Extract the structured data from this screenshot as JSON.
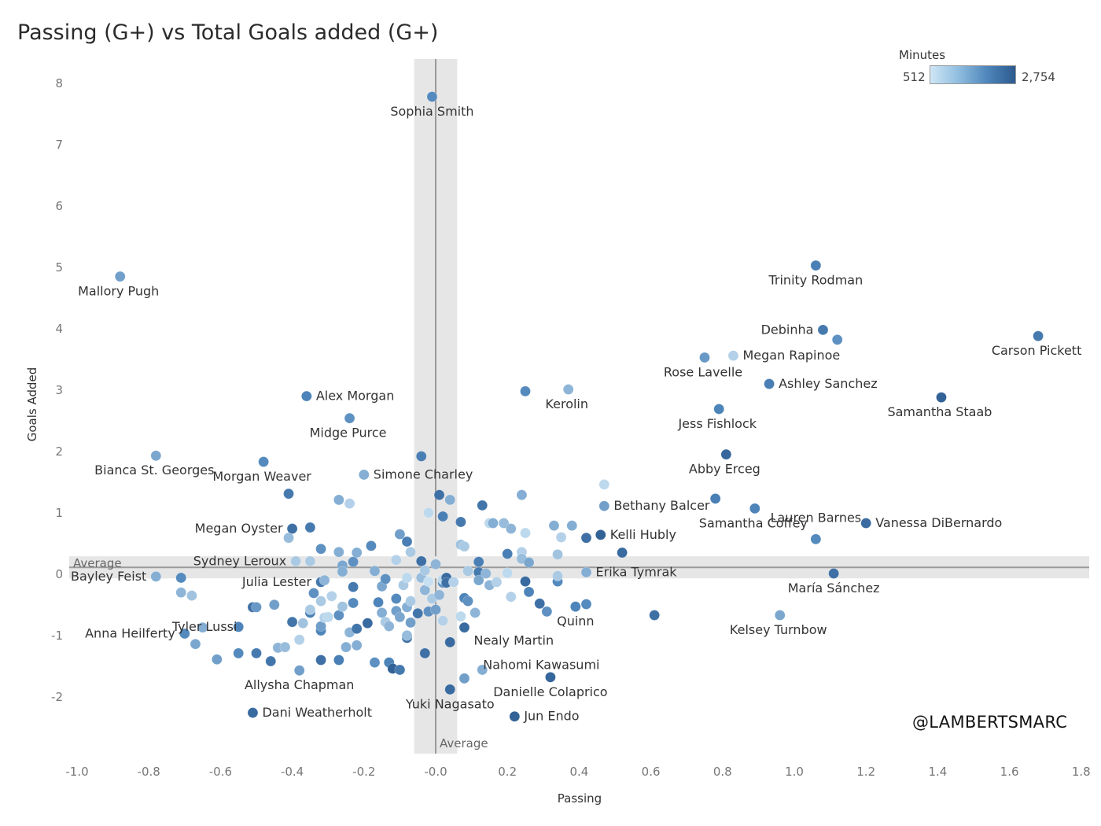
{
  "title": "Passing (G+) vs Total Goals added (G+)",
  "credit": "@LAMBERTSMARC",
  "legend": {
    "title": "Minutes",
    "min_label": "512",
    "max_label": "2,754",
    "min": 512,
    "max": 2754,
    "color_low": "#cfe6f5",
    "color_high": "#2c5a8e"
  },
  "chart_data": {
    "type": "scatter",
    "title": "Passing (G+) vs Total Goals added (G+)",
    "xlabel": "Passing",
    "ylabel": "Goals Added",
    "xlim": [
      -1.0,
      1.8
    ],
    "ylim": [
      -2.5,
      8.3
    ],
    "x_ticks": [
      "-1.0",
      "-0.8",
      "-0.6",
      "-0.4",
      "-0.2",
      "-0.0",
      "0.2",
      "0.4",
      "0.6",
      "0.8",
      "1.0",
      "1.2",
      "1.4",
      "1.6",
      "1.8"
    ],
    "y_ticks": [
      "8",
      "7",
      "6",
      "5",
      "4",
      "3",
      "2",
      "1",
      "0",
      "-1",
      "-2"
    ],
    "grid": false,
    "reference_lines": [
      {
        "axis": "x",
        "value": 0.0,
        "band": [
          -0.06,
          0.06
        ],
        "label": "Average"
      },
      {
        "axis": "y",
        "value": 0.1,
        "band": [
          -0.08,
          0.28
        ],
        "label": "Average"
      }
    ],
    "points": [
      {
        "x": -0.01,
        "y": 7.77,
        "m": 1800,
        "label": "Sophia Smith"
      },
      {
        "x": -0.88,
        "y": 4.84,
        "m": 1500,
        "label": "Mallory Pugh"
      },
      {
        "x": 1.06,
        "y": 5.02,
        "m": 2000,
        "label": "Trinity Rodman"
      },
      {
        "x": 1.08,
        "y": 3.97,
        "m": 2100,
        "label": "Debinha"
      },
      {
        "x": 1.12,
        "y": 3.81,
        "m": 1700
      },
      {
        "x": 1.68,
        "y": 3.87,
        "m": 2100,
        "label": "Carson Pickett"
      },
      {
        "x": 0.83,
        "y": 3.55,
        "m": 800,
        "label": "Megan Rapinoe"
      },
      {
        "x": 0.75,
        "y": 3.52,
        "m": 1600,
        "label": "Rose Lavelle"
      },
      {
        "x": 0.93,
        "y": 3.09,
        "m": 2000,
        "label": "Ashley Sanchez"
      },
      {
        "x": 1.41,
        "y": 2.87,
        "m": 2600,
        "label": "Samantha Staab"
      },
      {
        "x": 0.79,
        "y": 2.68,
        "m": 1900,
        "label": "Jess Fishlock"
      },
      {
        "x": 0.37,
        "y": 3.0,
        "m": 1200,
        "label": "Kerolin"
      },
      {
        "x": 0.25,
        "y": 2.97,
        "m": 1800
      },
      {
        "x": -0.36,
        "y": 2.89,
        "m": 1900,
        "label": "Alex Morgan"
      },
      {
        "x": -0.24,
        "y": 2.53,
        "m": 1700,
        "label": "Midge Purce"
      },
      {
        "x": -0.78,
        "y": 1.92,
        "m": 1400,
        "label": "Bianca St. Georges"
      },
      {
        "x": -0.48,
        "y": 1.82,
        "m": 1800,
        "label": "Morgan Weaver"
      },
      {
        "x": -0.04,
        "y": 1.91,
        "m": 2000
      },
      {
        "x": -0.2,
        "y": 1.61,
        "m": 1300,
        "label": "Simone Charley"
      },
      {
        "x": 0.81,
        "y": 1.94,
        "m": 2500,
        "label": "Abby Erceg"
      },
      {
        "x": 0.47,
        "y": 1.45,
        "m": 700
      },
      {
        "x": 0.47,
        "y": 1.1,
        "m": 1500,
        "label": "Bethany Balcer"
      },
      {
        "x": 0.78,
        "y": 1.22,
        "m": 2000
      },
      {
        "x": 0.89,
        "y": 1.06,
        "m": 1900,
        "label": "Samantha Coffey"
      },
      {
        "x": 1.2,
        "y": 0.82,
        "m": 2400,
        "label": "Vanessa DiBernardo"
      },
      {
        "x": 0.46,
        "y": 0.63,
        "m": 2600,
        "label": "Kelli Hubly"
      },
      {
        "x": 1.06,
        "y": 0.56,
        "m": 1800,
        "label": "Lauren Barnes"
      },
      {
        "x": 0.42,
        "y": 0.02,
        "m": 1300,
        "label": "Erika Tymrak"
      },
      {
        "x": 1.11,
        "y": 0.0,
        "m": 2300,
        "label": "María Sánchez"
      },
      {
        "x": 0.96,
        "y": -0.68,
        "m": 1400,
        "label": "Kelsey Turnbow"
      },
      {
        "x": 0.61,
        "y": -0.68,
        "m": 2300
      },
      {
        "x": -0.4,
        "y": 0.73,
        "m": 2300,
        "label": "Megan Oyster"
      },
      {
        "x": -0.35,
        "y": 0.75,
        "m": 2100
      },
      {
        "x": -0.41,
        "y": 1.3,
        "m": 2100
      },
      {
        "x": -0.41,
        "y": 0.58,
        "m": 1100
      },
      {
        "x": -0.39,
        "y": 0.2,
        "m": 900,
        "label": "Sydney Leroux"
      },
      {
        "x": -0.32,
        "y": -0.14,
        "m": 2100,
        "label": "Julia Lester"
      },
      {
        "x": -0.78,
        "y": -0.05,
        "m": 1300,
        "label": "Bayley Feist"
      },
      {
        "x": -0.71,
        "y": -0.07,
        "m": 1800
      },
      {
        "x": -0.71,
        "y": -0.31,
        "m": 1200
      },
      {
        "x": -0.68,
        "y": -0.36,
        "m": 1000
      },
      {
        "x": -0.51,
        "y": -0.55,
        "m": 2300,
        "label": "Tyler Lussi"
      },
      {
        "x": -0.7,
        "y": -0.98,
        "m": 1800,
        "label": "Anna Heilferty"
      },
      {
        "x": -0.38,
        "y": -1.58,
        "m": 1500,
        "label": "Allysha Chapman"
      },
      {
        "x": -0.51,
        "y": -2.27,
        "m": 2400,
        "label": "Dani Weatherholt"
      },
      {
        "x": 0.04,
        "y": -1.89,
        "m": 2400,
        "label": "Yuki Nagasato"
      },
      {
        "x": 0.22,
        "y": -2.33,
        "m": 2600,
        "label": "Jun Endo"
      },
      {
        "x": 0.32,
        "y": -1.69,
        "m": 2500,
        "label": "Danielle Colaprico"
      },
      {
        "x": 0.04,
        "y": -1.12,
        "m": 2400,
        "label": "Nahomi Kawasumi"
      },
      {
        "x": 0.08,
        "y": -0.88,
        "m": 2400,
        "label": "Nealy Martin"
      },
      {
        "x": 0.39,
        "y": -0.54,
        "m": 1900,
        "label": "Quinn"
      },
      {
        "x": -0.67,
        "y": -1.15,
        "m": 1400
      },
      {
        "x": -0.65,
        "y": -0.88,
        "m": 1300
      },
      {
        "x": -0.61,
        "y": -1.4,
        "m": 1500
      },
      {
        "x": -0.55,
        "y": -1.3,
        "m": 1800
      },
      {
        "x": -0.55,
        "y": -0.87,
        "m": 1900
      },
      {
        "x": -0.5,
        "y": -0.55,
        "m": 1600
      },
      {
        "x": -0.5,
        "y": -1.3,
        "m": 2100
      },
      {
        "x": -0.46,
        "y": -1.43,
        "m": 2200
      },
      {
        "x": -0.45,
        "y": -0.51,
        "m": 1500
      },
      {
        "x": -0.44,
        "y": -1.21,
        "m": 1200
      },
      {
        "x": -0.42,
        "y": -1.2,
        "m": 1100
      },
      {
        "x": -0.4,
        "y": -0.79,
        "m": 2200
      },
      {
        "x": -0.38,
        "y": -1.08,
        "m": 800
      },
      {
        "x": -0.37,
        "y": -0.81,
        "m": 1000
      },
      {
        "x": -0.35,
        "y": -0.64,
        "m": 2000
      },
      {
        "x": -0.35,
        "y": -0.59,
        "m": 900
      },
      {
        "x": -0.34,
        "y": -0.32,
        "m": 1700
      },
      {
        "x": -0.32,
        "y": -0.93,
        "m": 1900
      },
      {
        "x": -0.32,
        "y": -0.86,
        "m": 1500
      },
      {
        "x": -0.32,
        "y": -1.41,
        "m": 2300
      },
      {
        "x": -0.32,
        "y": -0.45,
        "m": 900
      },
      {
        "x": -0.31,
        "y": -0.72,
        "m": 800
      },
      {
        "x": -0.31,
        "y": -0.11,
        "m": 1200
      },
      {
        "x": -0.32,
        "y": 0.4,
        "m": 1700
      },
      {
        "x": -0.35,
        "y": 0.2,
        "m": 900
      },
      {
        "x": -0.3,
        "y": -0.71,
        "m": 700
      },
      {
        "x": -0.29,
        "y": -0.37,
        "m": 800
      },
      {
        "x": -0.27,
        "y": -0.68,
        "m": 1700
      },
      {
        "x": -0.27,
        "y": -1.41,
        "m": 2000
      },
      {
        "x": -0.27,
        "y": 0.35,
        "m": 1300
      },
      {
        "x": -0.27,
        "y": 1.2,
        "m": 1300
      },
      {
        "x": -0.24,
        "y": 1.14,
        "m": 800
      },
      {
        "x": -0.26,
        "y": -0.54,
        "m": 1000
      },
      {
        "x": -0.25,
        "y": -1.2,
        "m": 1300
      },
      {
        "x": -0.26,
        "y": 0.13,
        "m": 1400
      },
      {
        "x": -0.26,
        "y": 0.03,
        "m": 1300
      },
      {
        "x": -0.24,
        "y": -0.96,
        "m": 1200
      },
      {
        "x": -0.23,
        "y": -0.22,
        "m": 2100
      },
      {
        "x": -0.23,
        "y": -0.48,
        "m": 1800
      },
      {
        "x": -0.23,
        "y": 0.19,
        "m": 1700
      },
      {
        "x": -0.22,
        "y": 0.34,
        "m": 1300
      },
      {
        "x": -0.22,
        "y": -1.17,
        "m": 1300
      },
      {
        "x": -0.22,
        "y": -0.9,
        "m": 2200
      },
      {
        "x": -0.19,
        "y": -0.81,
        "m": 2400
      },
      {
        "x": -0.18,
        "y": 0.45,
        "m": 1800
      },
      {
        "x": -0.17,
        "y": 0.04,
        "m": 1300
      },
      {
        "x": -0.17,
        "y": -1.45,
        "m": 1700
      },
      {
        "x": -0.16,
        "y": -0.47,
        "m": 1900
      },
      {
        "x": -0.15,
        "y": -0.64,
        "m": 1300
      },
      {
        "x": -0.15,
        "y": -0.21,
        "m": 1400
      },
      {
        "x": -0.14,
        "y": -0.79,
        "m": 900
      },
      {
        "x": -0.14,
        "y": -0.09,
        "m": 1700
      },
      {
        "x": -0.13,
        "y": -1.45,
        "m": 1900
      },
      {
        "x": -0.13,
        "y": -0.86,
        "m": 1200
      },
      {
        "x": -0.12,
        "y": -1.55,
        "m": 2600
      },
      {
        "x": -0.11,
        "y": -0.41,
        "m": 1800
      },
      {
        "x": -0.11,
        "y": -0.61,
        "m": 1500
      },
      {
        "x": -0.11,
        "y": 0.22,
        "m": 800
      },
      {
        "x": -0.1,
        "y": 0.64,
        "m": 1500
      },
      {
        "x": -0.1,
        "y": -0.71,
        "m": 1400
      },
      {
        "x": -0.1,
        "y": -1.57,
        "m": 2100
      },
      {
        "x": -0.09,
        "y": -0.19,
        "m": 900
      },
      {
        "x": -0.08,
        "y": -0.07,
        "m": 700
      },
      {
        "x": -0.08,
        "y": -1.05,
        "m": 2300
      },
      {
        "x": -0.08,
        "y": -1.01,
        "m": 1100
      },
      {
        "x": -0.08,
        "y": -0.55,
        "m": 1300
      },
      {
        "x": -0.08,
        "y": 0.52,
        "m": 2000
      },
      {
        "x": -0.07,
        "y": 0.35,
        "m": 900
      },
      {
        "x": -0.07,
        "y": -0.8,
        "m": 1500
      },
      {
        "x": -0.07,
        "y": -0.45,
        "m": 900
      },
      {
        "x": -0.05,
        "y": -0.65,
        "m": 2200
      },
      {
        "x": -0.04,
        "y": -0.07,
        "m": 1100
      },
      {
        "x": -0.04,
        "y": 0.2,
        "m": 2300
      },
      {
        "x": -0.03,
        "y": -0.27,
        "m": 1200
      },
      {
        "x": -0.03,
        "y": 0.05,
        "m": 900
      },
      {
        "x": -0.03,
        "y": -1.3,
        "m": 2300
      },
      {
        "x": -0.02,
        "y": -0.62,
        "m": 1700
      },
      {
        "x": -0.02,
        "y": -0.13,
        "m": 600
      },
      {
        "x": -0.02,
        "y": 0.99,
        "m": 700
      },
      {
        "x": -0.01,
        "y": -0.41,
        "m": 900
      },
      {
        "x": 0.0,
        "y": -0.59,
        "m": 1500
      },
      {
        "x": 0.0,
        "y": 0.15,
        "m": 1200
      },
      {
        "x": 0.01,
        "y": -0.35,
        "m": 1200
      },
      {
        "x": 0.01,
        "y": 1.28,
        "m": 2300
      },
      {
        "x": 0.02,
        "y": 0.93,
        "m": 2000
      },
      {
        "x": 0.02,
        "y": -0.15,
        "m": 1700
      },
      {
        "x": 0.02,
        "y": -0.77,
        "m": 800
      },
      {
        "x": 0.02,
        "y": -0.1,
        "m": 700
      },
      {
        "x": 0.03,
        "y": -0.07,
        "m": 2400
      },
      {
        "x": 0.03,
        "y": -0.15,
        "m": 2300
      },
      {
        "x": 0.04,
        "y": 1.2,
        "m": 1300
      },
      {
        "x": 0.05,
        "y": -0.14,
        "m": 800
      },
      {
        "x": 0.07,
        "y": 0.84,
        "m": 2100
      },
      {
        "x": 0.07,
        "y": 0.47,
        "m": 1000
      },
      {
        "x": 0.07,
        "y": -0.7,
        "m": 700
      },
      {
        "x": 0.08,
        "y": -1.71,
        "m": 1500
      },
      {
        "x": 0.08,
        "y": 0.44,
        "m": 900
      },
      {
        "x": 0.08,
        "y": -0.4,
        "m": 1900
      },
      {
        "x": 0.09,
        "y": -0.45,
        "m": 1700
      },
      {
        "x": 0.09,
        "y": 0.04,
        "m": 900
      },
      {
        "x": 0.11,
        "y": -0.64,
        "m": 1200
      },
      {
        "x": 0.12,
        "y": 0.19,
        "m": 2000
      },
      {
        "x": 0.12,
        "y": 0.02,
        "m": 2100
      },
      {
        "x": 0.12,
        "y": -0.11,
        "m": 1400
      },
      {
        "x": 0.13,
        "y": -1.57,
        "m": 1300
      },
      {
        "x": 0.13,
        "y": 1.11,
        "m": 2200
      },
      {
        "x": 0.14,
        "y": 0.0,
        "m": 1200
      },
      {
        "x": 0.15,
        "y": -0.19,
        "m": 1200
      },
      {
        "x": 0.15,
        "y": 0.82,
        "m": 700
      },
      {
        "x": 0.16,
        "y": 0.82,
        "m": 1300
      },
      {
        "x": 0.17,
        "y": -0.14,
        "m": 800
      },
      {
        "x": 0.19,
        "y": 0.82,
        "m": 1100
      },
      {
        "x": 0.2,
        "y": 0.01,
        "m": 700
      },
      {
        "x": 0.2,
        "y": 0.32,
        "m": 2000
      },
      {
        "x": 0.21,
        "y": -0.38,
        "m": 800
      },
      {
        "x": 0.21,
        "y": 0.73,
        "m": 1200
      },
      {
        "x": 0.24,
        "y": 1.28,
        "m": 1300
      },
      {
        "x": 0.24,
        "y": 0.35,
        "m": 800
      },
      {
        "x": 0.24,
        "y": 0.24,
        "m": 1100
      },
      {
        "x": 0.25,
        "y": 0.66,
        "m": 700
      },
      {
        "x": 0.25,
        "y": -0.13,
        "m": 2400
      },
      {
        "x": 0.26,
        "y": 0.18,
        "m": 1400
      },
      {
        "x": 0.26,
        "y": -0.3,
        "m": 1900
      },
      {
        "x": 0.29,
        "y": -0.49,
        "m": 2300
      },
      {
        "x": 0.31,
        "y": -0.62,
        "m": 1700
      },
      {
        "x": 0.33,
        "y": 0.78,
        "m": 1300
      },
      {
        "x": 0.34,
        "y": 0.31,
        "m": 1000
      },
      {
        "x": 0.34,
        "y": -0.13,
        "m": 1800
      },
      {
        "x": 0.34,
        "y": -0.04,
        "m": 900
      },
      {
        "x": 0.35,
        "y": 0.59,
        "m": 800
      },
      {
        "x": 0.38,
        "y": 0.78,
        "m": 1300
      },
      {
        "x": 0.42,
        "y": 0.58,
        "m": 2300
      },
      {
        "x": 0.42,
        "y": -0.5,
        "m": 1800
      },
      {
        "x": 0.52,
        "y": 0.34,
        "m": 2400
      }
    ]
  }
}
